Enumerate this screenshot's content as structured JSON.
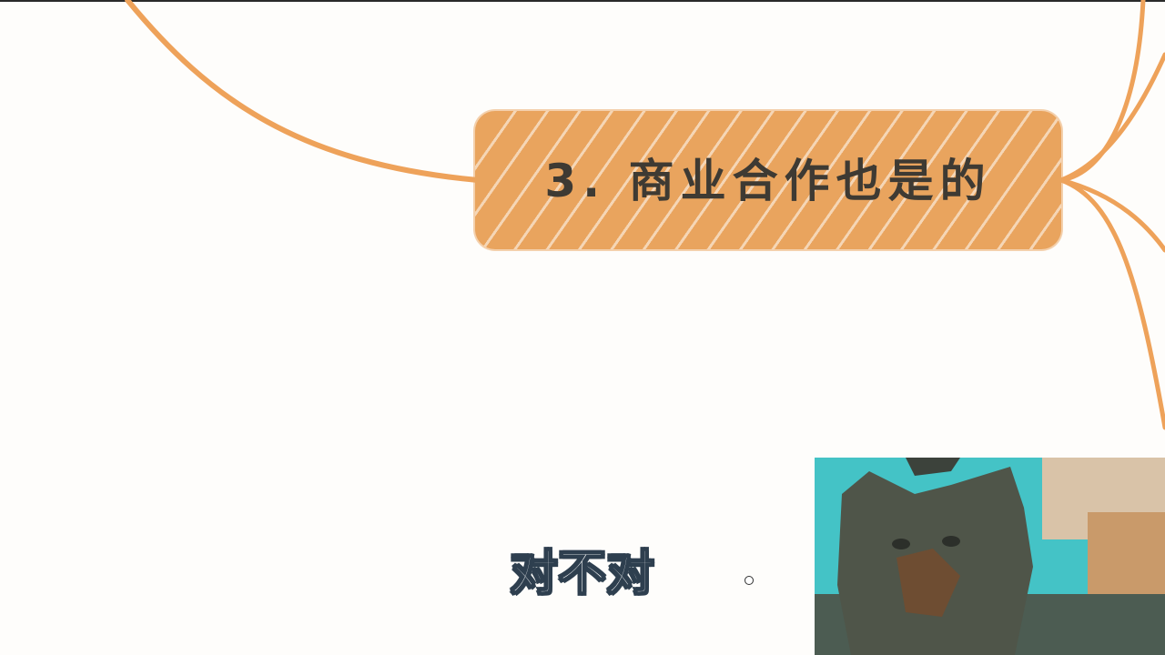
{
  "mindmap": {
    "node_title": "3. 商业合作也是的",
    "node_color": "#e9a45e",
    "branch_color": "#eea25a"
  },
  "caption": {
    "text": "对不对"
  },
  "webcam": {
    "subject": "cat"
  }
}
